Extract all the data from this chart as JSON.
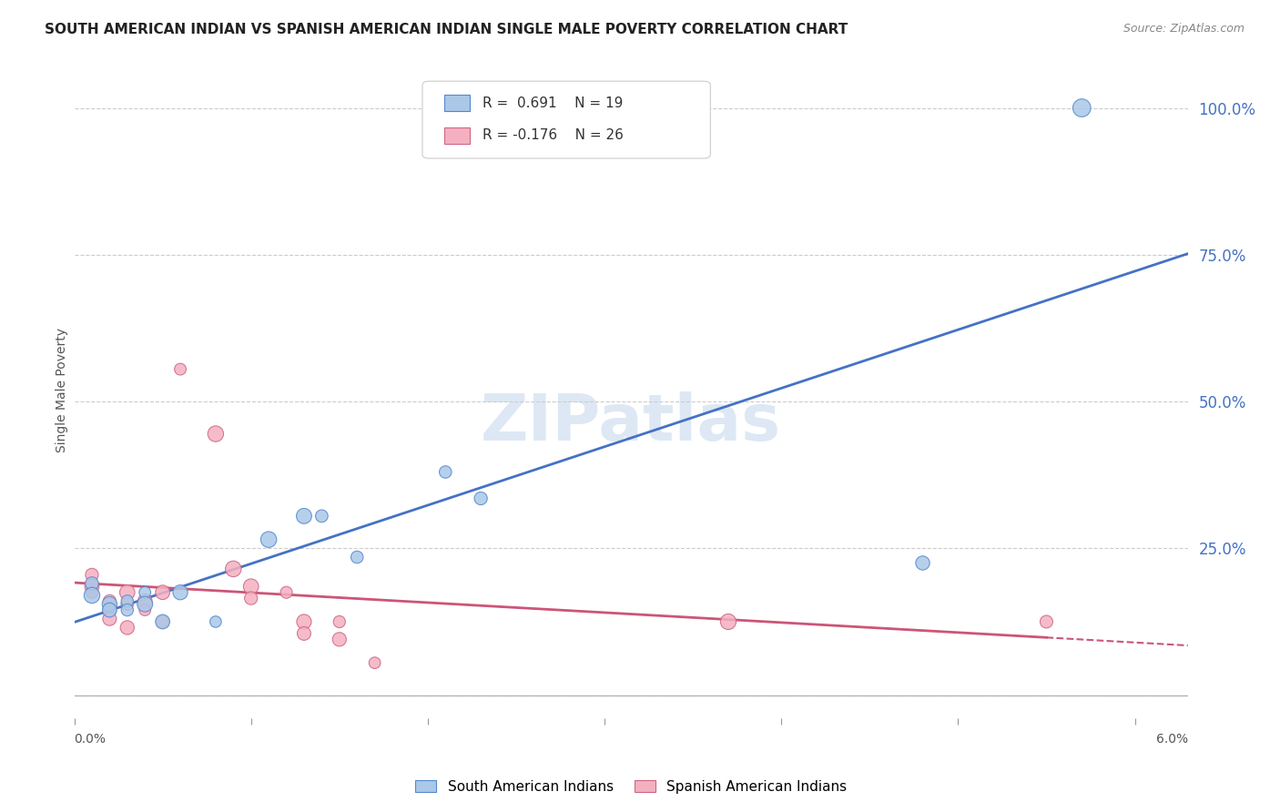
{
  "title": "SOUTH AMERICAN INDIAN VS SPANISH AMERICAN INDIAN SINGLE MALE POVERTY CORRELATION CHART",
  "source": "Source: ZipAtlas.com",
  "ylabel": "Single Male Poverty",
  "xlim": [
    0.0,
    0.063
  ],
  "ylim": [
    -0.04,
    1.08
  ],
  "yticks": [
    0.0,
    0.25,
    0.5,
    0.75,
    1.0
  ],
  "ytick_labels": [
    "",
    "25.0%",
    "50.0%",
    "75.0%",
    "100.0%"
  ],
  "blue_R": 0.691,
  "blue_N": 19,
  "pink_R": -0.176,
  "pink_N": 26,
  "blue_label": "South American Indians",
  "pink_label": "Spanish American Indians",
  "blue_face_color": "#aac8e8",
  "pink_face_color": "#f5b0c0",
  "blue_edge_color": "#5588cc",
  "pink_edge_color": "#cc6688",
  "blue_line_color": "#4472c4",
  "pink_line_color": "#cc5577",
  "blue_points": [
    [
      0.001,
      0.19
    ],
    [
      0.001,
      0.17
    ],
    [
      0.002,
      0.155
    ],
    [
      0.002,
      0.145
    ],
    [
      0.003,
      0.16
    ],
    [
      0.003,
      0.145
    ],
    [
      0.004,
      0.175
    ],
    [
      0.004,
      0.155
    ],
    [
      0.005,
      0.125
    ],
    [
      0.006,
      0.175
    ],
    [
      0.008,
      0.125
    ],
    [
      0.011,
      0.265
    ],
    [
      0.013,
      0.305
    ],
    [
      0.014,
      0.305
    ],
    [
      0.016,
      0.235
    ],
    [
      0.021,
      0.38
    ],
    [
      0.023,
      0.335
    ],
    [
      0.048,
      0.225
    ],
    [
      0.057,
      1.0
    ]
  ],
  "pink_points": [
    [
      0.001,
      0.205
    ],
    [
      0.001,
      0.185
    ],
    [
      0.001,
      0.175
    ],
    [
      0.002,
      0.16
    ],
    [
      0.002,
      0.145
    ],
    [
      0.002,
      0.13
    ],
    [
      0.003,
      0.175
    ],
    [
      0.003,
      0.155
    ],
    [
      0.003,
      0.115
    ],
    [
      0.004,
      0.16
    ],
    [
      0.004,
      0.145
    ],
    [
      0.005,
      0.175
    ],
    [
      0.005,
      0.125
    ],
    [
      0.006,
      0.555
    ],
    [
      0.008,
      0.445
    ],
    [
      0.009,
      0.215
    ],
    [
      0.01,
      0.185
    ],
    [
      0.01,
      0.165
    ],
    [
      0.012,
      0.175
    ],
    [
      0.013,
      0.125
    ],
    [
      0.013,
      0.105
    ],
    [
      0.015,
      0.125
    ],
    [
      0.015,
      0.095
    ],
    [
      0.017,
      0.055
    ],
    [
      0.037,
      0.125
    ],
    [
      0.055,
      0.125
    ]
  ],
  "background_color": "#ffffff",
  "grid_color": "#cccccc"
}
